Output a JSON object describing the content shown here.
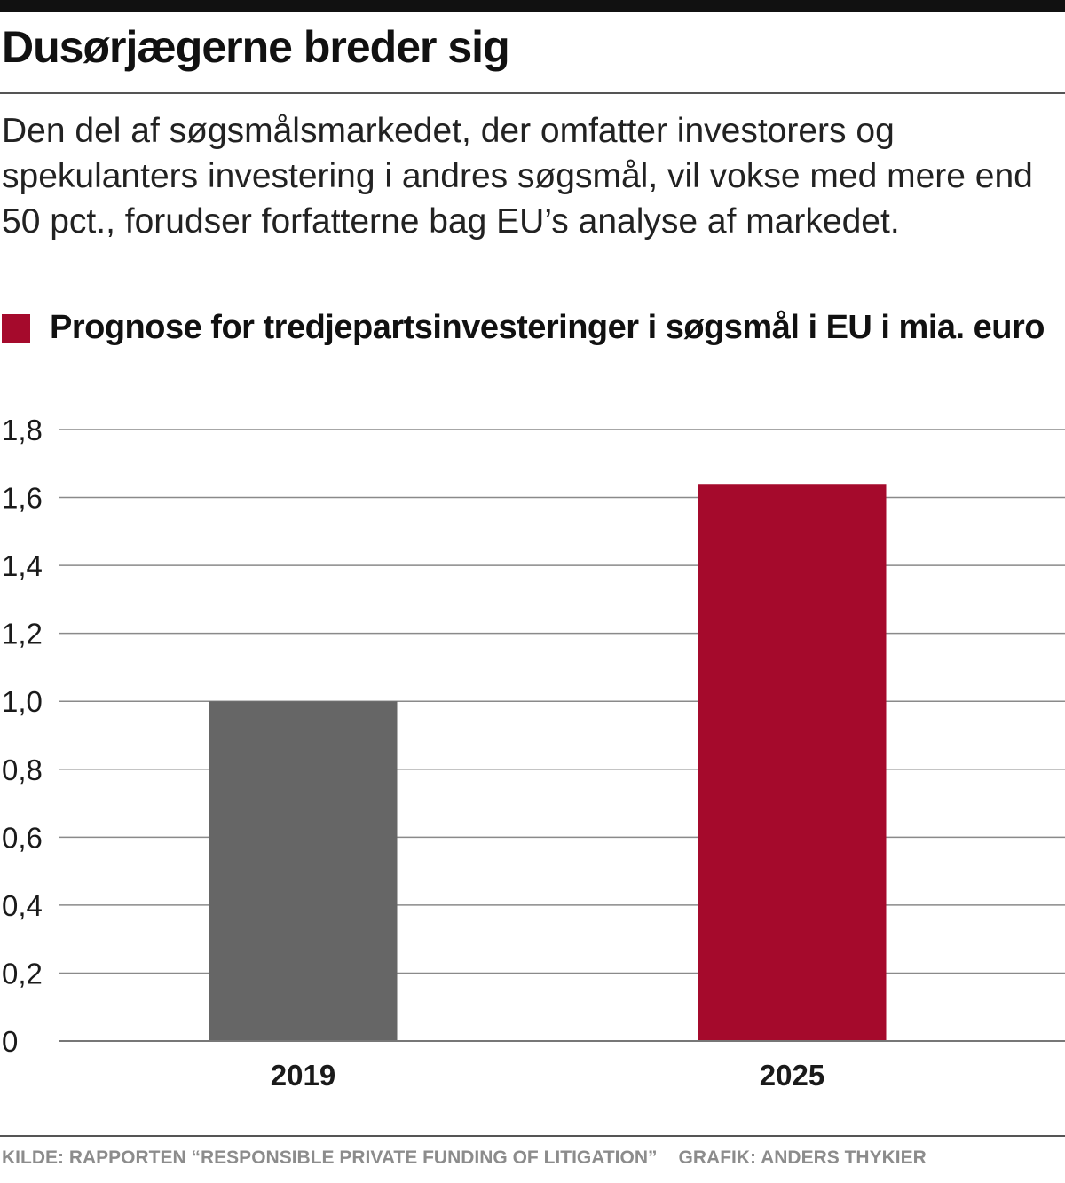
{
  "header": {
    "headline": "Dusørjægerne breder sig",
    "dek": "Den del af søgsmålsmarkedet, der omfatter investorers og spekulanters investering i andres søgsmål, vil vokse med mere end 50 pct., forudser forfatterne bag EU’s analyse af markedet."
  },
  "chart_data": {
    "type": "bar",
    "title": "Prognose for tredjepartsinvesteringer i søgsmål i EU i mia. euro",
    "categories": [
      "2019",
      "2025"
    ],
    "values": [
      1.0,
      1.64
    ],
    "colors": [
      "#666666",
      "#a50a2c"
    ],
    "legend_color": "#a50a2c",
    "ylim": [
      0,
      1.8
    ],
    "yticks": [
      0,
      0.2,
      0.4,
      0.6,
      0.8,
      1.0,
      1.2,
      1.4,
      1.6,
      1.8
    ],
    "ytick_labels": [
      "0",
      "0,2",
      "0,4",
      "0,6",
      "0,8",
      "1,0",
      "1,2",
      "1,4",
      "1,6",
      "1,8"
    ],
    "grid": true,
    "xlabel": "",
    "ylabel": ""
  },
  "footer": {
    "source": "KILDE: RAPPORTEN “RESPONSIBLE PRIVATE FUNDING OF LITIGATION”",
    "credit": "GRAFIK: ANDERS THYKIER"
  }
}
